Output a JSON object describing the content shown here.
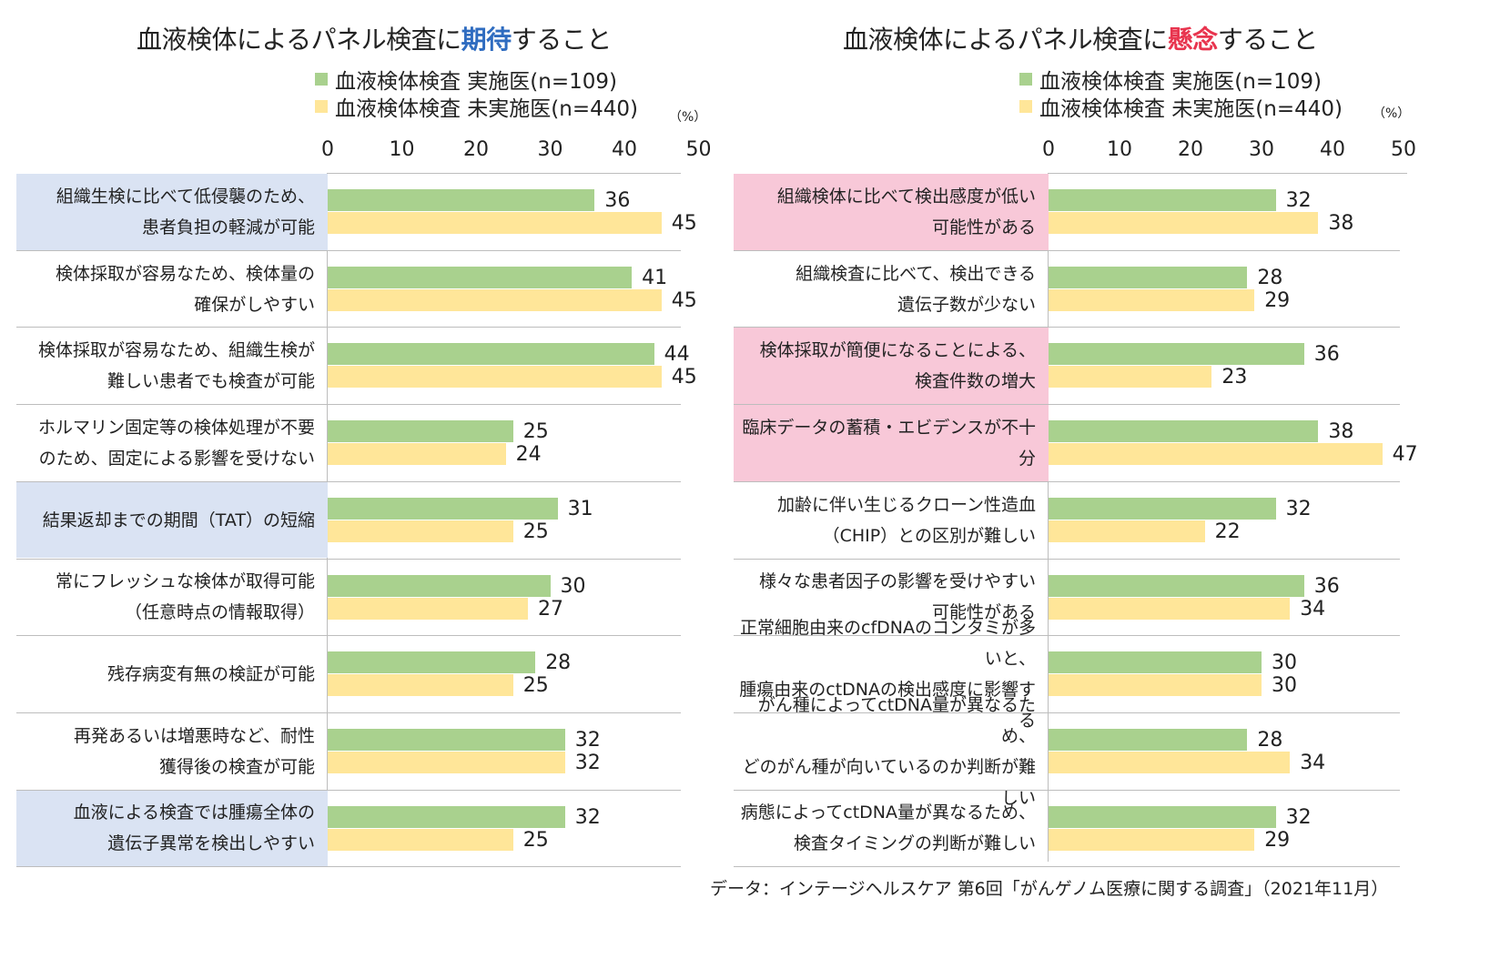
{
  "colors": {
    "green": "#a9d18e",
    "yellow": "#ffe699",
    "highlight_blue": "#dae3f3",
    "highlight_pink": "#f8c8d8",
    "expect_accent": "#2f6cc0",
    "concern_accent": "#e8344e"
  },
  "left": {
    "title_pre": "血液検体によるパネル検査に",
    "title_hl": "期待",
    "title_post": "すること",
    "legend": [
      "血液検体検査 実施医(n=109)",
      "血液検体検査 未実施医(n=440)"
    ],
    "unit": "（%）",
    "ticks": [
      "0",
      "10",
      "20",
      "30",
      "40",
      "50"
    ]
  },
  "right": {
    "title_pre": "血液検体によるパネル検査に",
    "title_hl": "懸念",
    "title_post": "すること",
    "legend": [
      "血液検体検査 実施医(n=109)",
      "血液検体検査 未実施医(n=440)"
    ],
    "unit": "（%）",
    "ticks": [
      "0",
      "10",
      "20",
      "30",
      "40",
      "50"
    ]
  },
  "footnote": "データ：インテージヘルスケア 第6回「がんゲノム医療に関する調査」（2021年11月）",
  "chart_data": [
    {
      "type": "bar",
      "orientation": "horizontal",
      "title": "血液検体によるパネル検査に期待すること",
      "unit": "（%）",
      "xlim": [
        0,
        50
      ],
      "legend_position": "top",
      "categories": [
        {
          "lines": [
            "組織生検に比べて低侵襲のため、",
            "患者負担の軽減が可能"
          ],
          "highlight": true
        },
        {
          "lines": [
            "検体採取が容易なため、検体量の",
            "確保がしやすい"
          ],
          "highlight": false
        },
        {
          "lines": [
            "検体採取が容易なため、組織生検が",
            "難しい患者でも検査が可能"
          ],
          "highlight": false
        },
        {
          "lines": [
            "ホルマリン固定等の検体処理が不要",
            "のため、固定による影響を受けない"
          ],
          "highlight": false
        },
        {
          "lines": [
            "結果返却までの期間（TAT）の短縮"
          ],
          "highlight": true
        },
        {
          "lines": [
            "常にフレッシュな検体が取得可能",
            "（任意時点の情報取得）"
          ],
          "highlight": false
        },
        {
          "lines": [
            "残存病変有無の検証が可能"
          ],
          "highlight": false
        },
        {
          "lines": [
            "再発あるいは増悪時など、耐性",
            "獲得後の検査が可能"
          ],
          "highlight": false
        },
        {
          "lines": [
            "血液による検査では腫瘍全体の",
            "遺伝子異常を検出しやすい"
          ],
          "highlight": true
        }
      ],
      "series": [
        {
          "name": "血液検体検査 実施医(n=109)",
          "color": "#a9d18e",
          "values": [
            36,
            41,
            44,
            25,
            31,
            30,
            28,
            32,
            32
          ]
        },
        {
          "name": "血液検体検査 未実施医(n=440)",
          "color": "#ffe699",
          "values": [
            45,
            45,
            45,
            24,
            25,
            27,
            25,
            32,
            25
          ]
        }
      ]
    },
    {
      "type": "bar",
      "orientation": "horizontal",
      "title": "血液検体によるパネル検査に懸念すること",
      "unit": "（%）",
      "xlim": [
        0,
        50
      ],
      "legend_position": "top",
      "categories": [
        {
          "lines": [
            "組織検体に比べて検出感度が低い",
            "可能性がある"
          ],
          "highlight": true
        },
        {
          "lines": [
            "組織検査に比べて、検出できる",
            "遺伝子数が少ない"
          ],
          "highlight": false
        },
        {
          "lines": [
            "検体採取が簡便になることによる、",
            "検査件数の増大"
          ],
          "highlight": true
        },
        {
          "lines": [
            "臨床データの蓄積・エビデンスが不十分"
          ],
          "highlight": true
        },
        {
          "lines": [
            "加齢に伴い生じるクローン性造血",
            "（CHIP）との区別が難しい"
          ],
          "highlight": false
        },
        {
          "lines": [
            "様々な患者因子の影響を受けやすい",
            "可能性がある"
          ],
          "highlight": false
        },
        {
          "lines": [
            "正常細胞由来のcfDNAのコンタミが多いと、",
            "腫瘍由来のctDNAの検出感度に影響する"
          ],
          "highlight": false
        },
        {
          "lines": [
            "がん種によってctDNA量が異なるため、",
            "どのがん種が向いているのか判断が難しい"
          ],
          "highlight": false
        },
        {
          "lines": [
            "病態によってctDNA量が異なるため、",
            "検査タイミングの判断が難しい"
          ],
          "highlight": false
        }
      ],
      "series": [
        {
          "name": "血液検体検査 実施医(n=109)",
          "color": "#a9d18e",
          "values": [
            32,
            28,
            36,
            38,
            32,
            36,
            30,
            28,
            32
          ]
        },
        {
          "name": "血液検体検査 未実施医(n=440)",
          "color": "#ffe699",
          "values": [
            38,
            29,
            23,
            47,
            22,
            34,
            30,
            34,
            29
          ]
        }
      ]
    }
  ]
}
